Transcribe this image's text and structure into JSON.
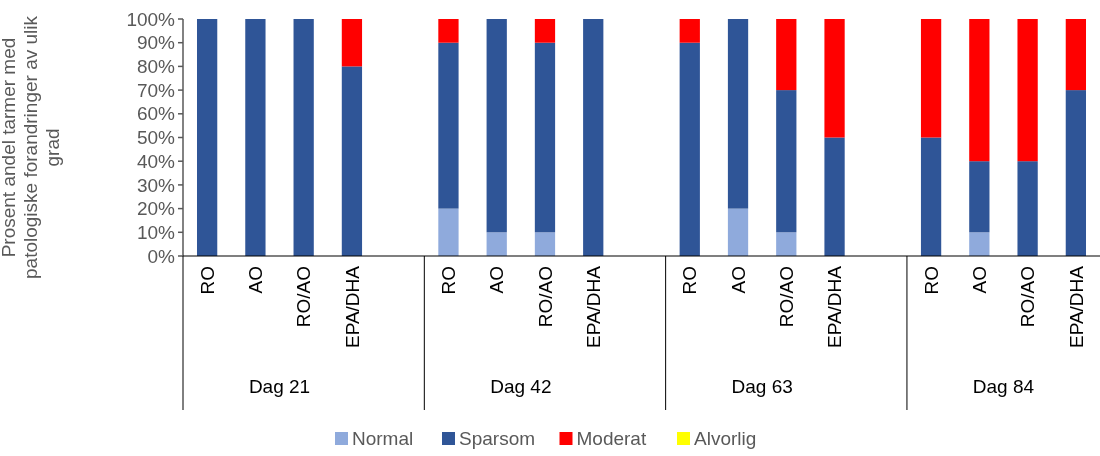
{
  "chart_data": {
    "type": "bar",
    "stacked": true,
    "ylabel": "Prosent andel tarmer med patologiske forandringer av ulik grad",
    "categories": [
      "RO",
      "AO",
      "RO/AO",
      "EPA/DHA",
      "RO",
      "AO",
      "RO/AO",
      "EPA/DHA",
      "RO",
      "AO",
      "RO/AO",
      "EPA/DHA",
      "RO",
      "AO",
      "RO/AO",
      "EPA/DHA"
    ],
    "annotations": [
      "Dag 21",
      "Dag 42",
      "Dag 63",
      "Dag 84"
    ],
    "series": [
      {
        "name": "Normal",
        "color": "#8faadc",
        "values": [
          0,
          0,
          0,
          0,
          20,
          10,
          10,
          0,
          0,
          20,
          10,
          0,
          0,
          10,
          0,
          0
        ]
      },
      {
        "name": "Sparsom",
        "color": "#2f5597",
        "values": [
          100,
          100,
          100,
          80,
          70,
          90,
          80,
          100,
          90,
          80,
          60,
          50,
          50,
          30,
          40,
          70
        ]
      },
      {
        "name": "Moderat",
        "color": "#ff0000",
        "values": [
          0,
          0,
          0,
          20,
          10,
          0,
          10,
          0,
          10,
          0,
          30,
          50,
          50,
          60,
          60,
          30
        ]
      },
      {
        "name": "Alvorlig",
        "color": "#ffff00",
        "values": [
          0,
          0,
          0,
          0,
          0,
          0,
          0,
          0,
          0,
          0,
          0,
          0,
          0,
          0,
          0,
          0
        ]
      }
    ],
    "ylim": [
      0,
      100
    ],
    "yticks": [
      {
        "value": 0,
        "label": "0%"
      },
      {
        "value": 10,
        "label": "10%"
      },
      {
        "value": 20,
        "label": "20%"
      },
      {
        "value": 30,
        "label": "30%"
      },
      {
        "value": 40,
        "label": "40%"
      },
      {
        "value": 50,
        "label": "50%"
      },
      {
        "value": 60,
        "label": "60%"
      },
      {
        "value": 70,
        "label": "70%"
      },
      {
        "value": 80,
        "label": "80%"
      },
      {
        "value": 90,
        "label": "90%"
      },
      {
        "value": 100,
        "label": "100%"
      }
    ],
    "legend": "bottom",
    "grid": false
  }
}
